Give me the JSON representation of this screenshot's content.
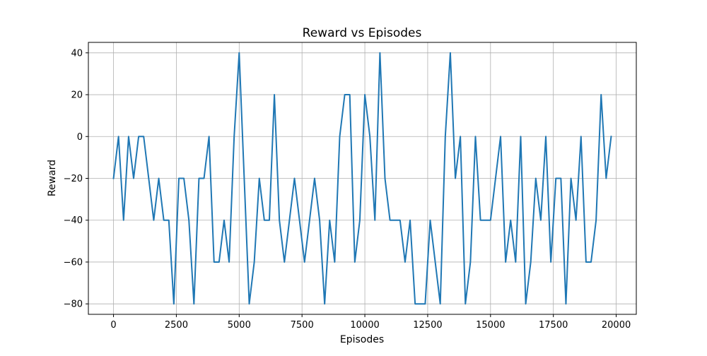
{
  "chart_data": {
    "type": "line",
    "title": "Reward vs Episodes",
    "xlabel": "Episodes",
    "ylabel": "Reward",
    "xlim": [
      -1000,
      20800
    ],
    "ylim": [
      -85,
      45
    ],
    "xticks": [
      0,
      2500,
      5000,
      7500,
      10000,
      12500,
      15000,
      17500,
      20000
    ],
    "yticks": [
      -80,
      -60,
      -40,
      -20,
      0,
      20,
      40
    ],
    "grid": true,
    "line_color": "#1f77b4",
    "x": [
      0,
      200,
      400,
      600,
      800,
      1000,
      1200,
      1400,
      1600,
      1800,
      2000,
      2200,
      2400,
      2600,
      2800,
      3000,
      3200,
      3400,
      3600,
      3800,
      4000,
      4200,
      4400,
      4600,
      4800,
      5000,
      5200,
      5400,
      5600,
      5800,
      6000,
      6200,
      6400,
      6600,
      6800,
      7000,
      7200,
      7400,
      7600,
      7800,
      8000,
      8200,
      8400,
      8600,
      8800,
      9000,
      9200,
      9400,
      9600,
      9800,
      10000,
      10200,
      10400,
      10600,
      10800,
      11000,
      11200,
      11400,
      11600,
      11800,
      12000,
      12200,
      12400,
      12600,
      12800,
      13000,
      13200,
      13400,
      13600,
      13800,
      14000,
      14200,
      14400,
      14600,
      14800,
      15000,
      15200,
      15400,
      15600,
      15800,
      16000,
      16200,
      16400,
      16600,
      16800,
      17000,
      17200,
      17400,
      17600,
      17800,
      18000,
      18200,
      18400,
      18600,
      18800,
      19000,
      19200,
      19400,
      19600,
      19800
    ],
    "y": [
      -20,
      0,
      -40,
      0,
      -20,
      0,
      0,
      -20,
      -40,
      -20,
      -40,
      -40,
      -80,
      -20,
      -20,
      -40,
      -80,
      -20,
      -20,
      0,
      -60,
      -60,
      -40,
      -60,
      0,
      40,
      -20,
      -80,
      -60,
      -20,
      -40,
      -40,
      20,
      -40,
      -60,
      -40,
      -20,
      -40,
      -60,
      -40,
      -20,
      -40,
      -80,
      -40,
      -60,
      0,
      20,
      20,
      -60,
      -40,
      20,
      0,
      -40,
      40,
      -20,
      -40,
      -40,
      -40,
      -60,
      -40,
      -80,
      -80,
      -80,
      -40,
      -60,
      -80,
      0,
      40,
      -20,
      0,
      -80,
      -60,
      0,
      -40,
      -40,
      -40,
      -20,
      0,
      -60,
      -40,
      -60,
      0,
      -80,
      -60,
      -20,
      -40,
      0,
      -60,
      -20,
      -20,
      -80,
      -20,
      -40,
      0,
      -60,
      -60,
      -40,
      20,
      -20,
      0
    ]
  }
}
